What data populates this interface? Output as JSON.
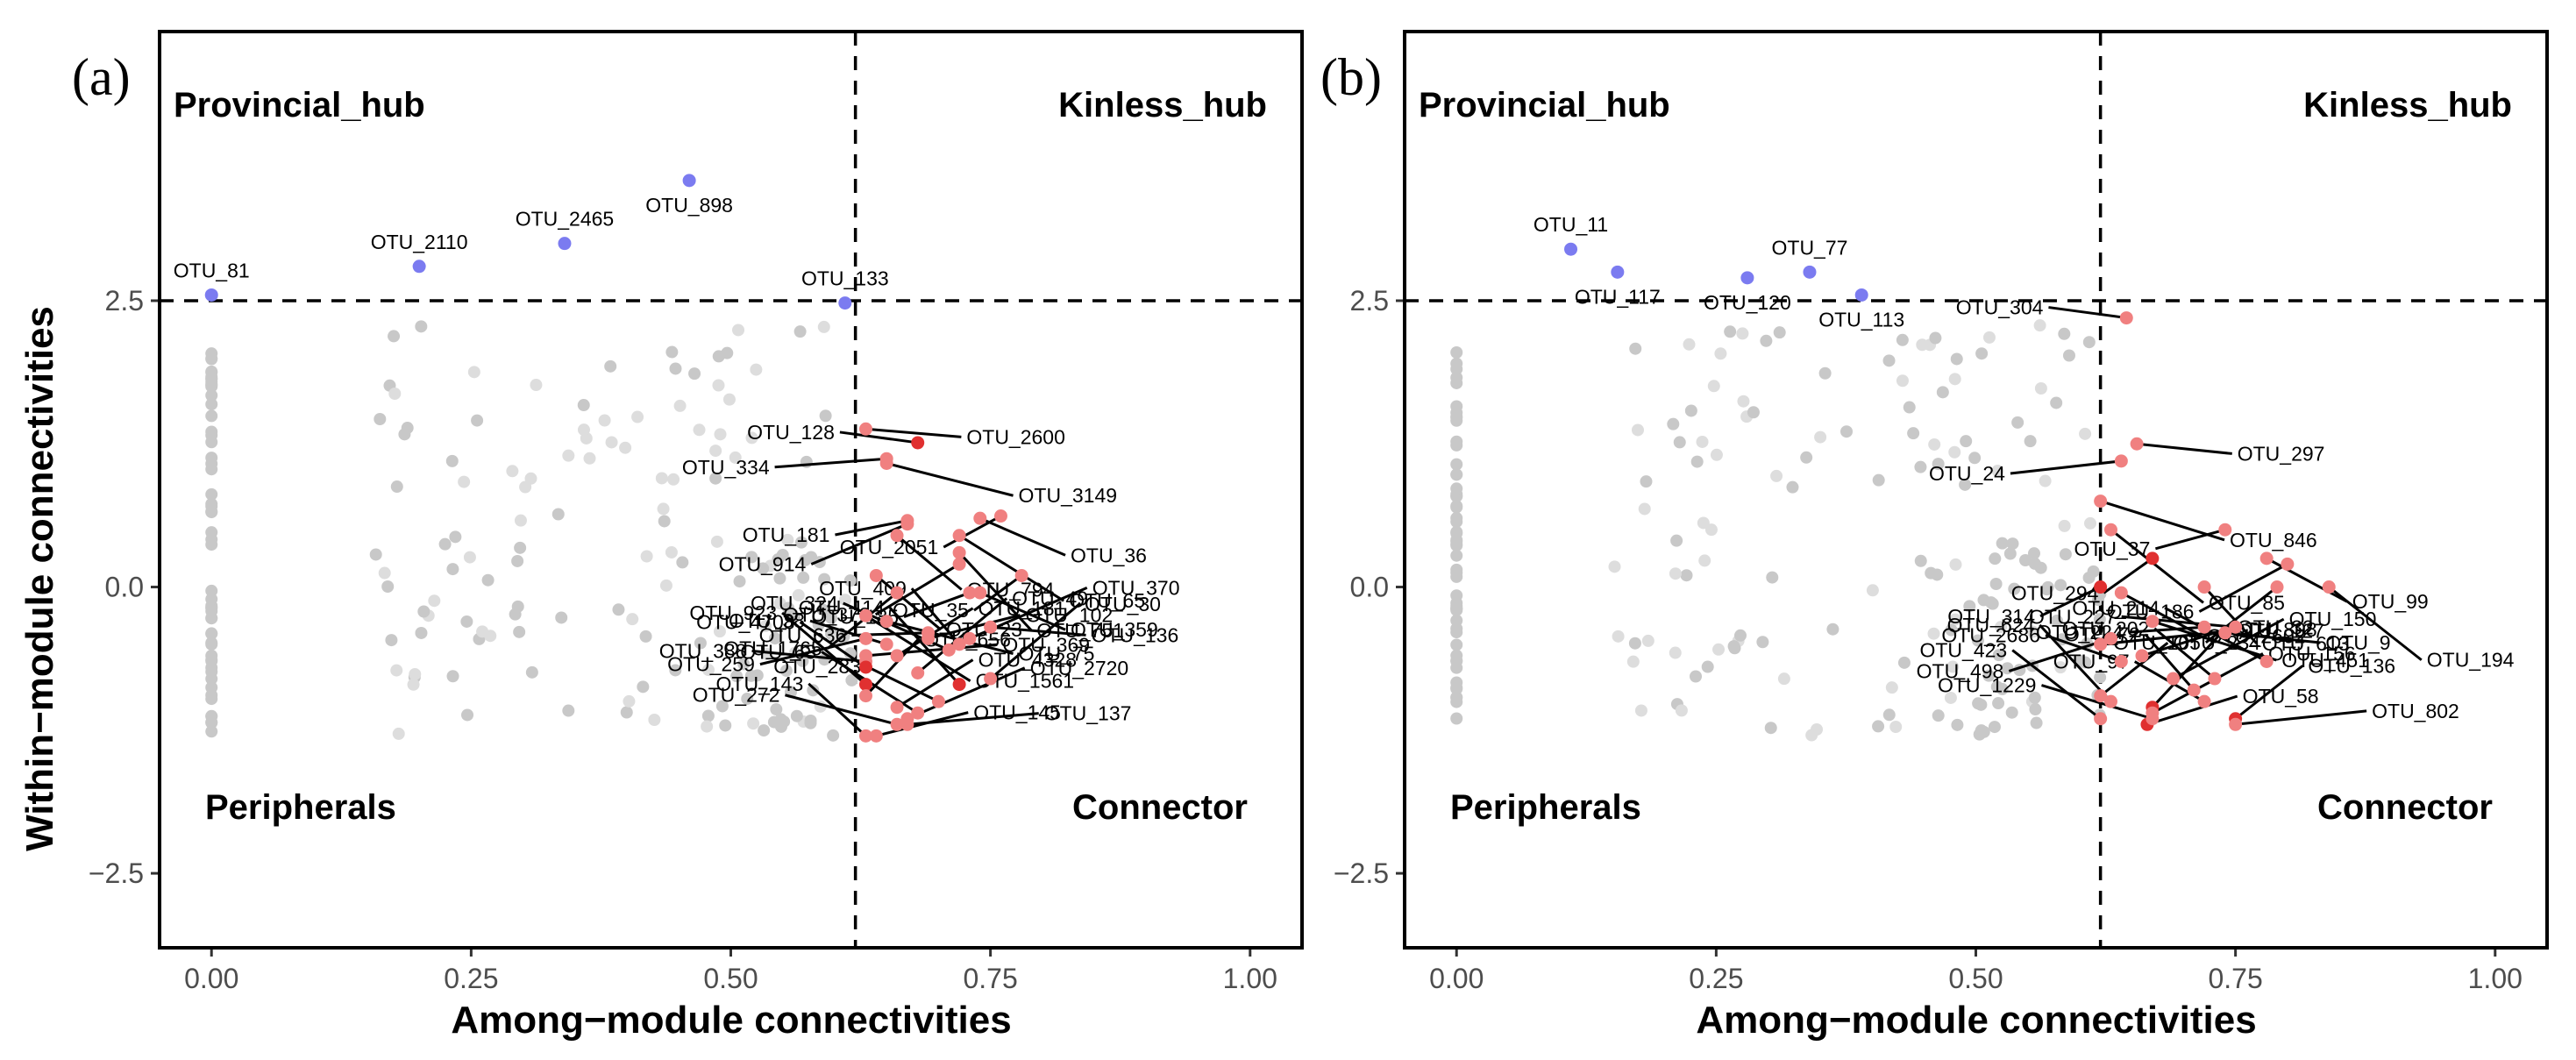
{
  "chart_data": [
    {
      "type": "scatter",
      "panel": "(a)",
      "xlabel": "Among−module connectivities",
      "ylabel": "Within−module connectivities",
      "xlim": [
        -0.05,
        1.05
      ],
      "ylim": [
        -3.15,
        4.85
      ],
      "x_ticks": [
        "0.00",
        "0.25",
        "0.50",
        "0.75",
        "1.00"
      ],
      "y_ticks": [
        "−2.5",
        "0.0",
        "2.5"
      ],
      "x_tick_values": [
        0,
        0.25,
        0.5,
        0.75,
        1.0
      ],
      "y_tick_values": [
        -2.5,
        0,
        2.5
      ],
      "threshold_x": 0.62,
      "threshold_y": 2.5,
      "quadrants": {
        "provincial": "Provincial_hub",
        "kinless": "Kinless_hub",
        "peripherals": "Peripherals",
        "connector": "Connector"
      },
      "colors": {
        "hub": "#7b7bf0",
        "connector": "#f08080",
        "connector_dark": "#e03030",
        "peripheral": "#c8c8c8",
        "peripheral_light": "#dddddd"
      },
      "hubs": [
        {
          "label": "OTU_81",
          "x": 0.0,
          "y": 2.55
        },
        {
          "label": "OTU_2110",
          "x": 0.2,
          "y": 2.8
        },
        {
          "label": "OTU_2465",
          "x": 0.34,
          "y": 3.0
        },
        {
          "label": "OTU_898",
          "x": 0.46,
          "y": 3.55
        },
        {
          "label": "OTU_133",
          "x": 0.61,
          "y": 2.48
        }
      ],
      "connectors": [
        {
          "label": "OTU_128",
          "x": 0.68,
          "y": 1.26,
          "dark": true
        },
        {
          "label": "OTU_2600",
          "x": 0.63,
          "y": 1.38,
          "dark": false
        },
        {
          "label": "OTU_334",
          "x": 0.65,
          "y": 1.12,
          "dark": false
        },
        {
          "label": "OTU_3149",
          "x": 0.65,
          "y": 1.08,
          "dark": false
        },
        {
          "label": "OTU_181",
          "x": 0.67,
          "y": 0.58,
          "dark": false
        },
        {
          "label": "OTU_36",
          "x": 0.74,
          "y": 0.6,
          "dark": false
        },
        {
          "label": "OTU_914",
          "x": 0.67,
          "y": 0.55,
          "dark": false
        },
        {
          "label": "OTU_65",
          "x": 0.72,
          "y": 0.45,
          "dark": false
        },
        {
          "label": "OTU_2051",
          "x": 0.76,
          "y": 0.62,
          "dark": false
        },
        {
          "label": "OTU_794",
          "x": 0.66,
          "y": 0.45,
          "dark": false
        },
        {
          "label": "OTU_1765",
          "x": 0.66,
          "y": -0.05,
          "dark": false
        },
        {
          "label": "OTU_751",
          "x": 0.72,
          "y": 0.3,
          "dark": false
        },
        {
          "label": "OTU_35",
          "x": 0.78,
          "y": 0.1,
          "dark": false
        },
        {
          "label": "OTU_23",
          "x": 0.64,
          "y": 0.1,
          "dark": false
        },
        {
          "label": "OTU_378",
          "x": 0.72,
          "y": 0.2,
          "dark": false
        },
        {
          "label": "OTU_1561",
          "x": 0.63,
          "y": -0.25,
          "dark": false
        },
        {
          "label": "OTU_185",
          "x": 0.73,
          "y": -0.05,
          "dark": false
        },
        {
          "label": "OTU_359",
          "x": 0.74,
          "y": -0.05,
          "dark": false
        },
        {
          "label": "OTU_259",
          "x": 0.63,
          "y": -0.45,
          "dark": false
        },
        {
          "label": "OTU_75",
          "x": 0.65,
          "y": -0.3,
          "dark": false
        },
        {
          "label": "OTU_636",
          "x": 0.69,
          "y": -0.4,
          "dark": false
        },
        {
          "label": "OTU_136",
          "x": 0.75,
          "y": -0.35,
          "dark": false
        },
        {
          "label": "OTU_388",
          "x": 0.63,
          "y": -0.65,
          "dark": false
        },
        {
          "label": "OTU_369",
          "x": 0.63,
          "y": -0.6,
          "dark": false
        },
        {
          "label": "OTU_38",
          "x": 0.65,
          "y": -0.5,
          "dark": false
        },
        {
          "label": "OTU_102",
          "x": 0.69,
          "y": -0.45,
          "dark": false
        },
        {
          "label": "OTU_324",
          "x": 0.71,
          "y": -0.55,
          "dark": false
        },
        {
          "label": "OTU_370",
          "x": 0.73,
          "y": -0.45,
          "dark": false
        },
        {
          "label": "OTU_4708",
          "x": 0.63,
          "y": -0.7,
          "dark": true
        },
        {
          "label": "OTU_181",
          "x": 0.66,
          "y": -0.6,
          "dark": false
        },
        {
          "label": "OTU_923",
          "x": 0.63,
          "y": -0.85,
          "dark": true
        },
        {
          "label": "OTU_49",
          "x": 0.68,
          "y": -0.75,
          "dark": false
        },
        {
          "label": "OTU_409",
          "x": 0.72,
          "y": -0.5,
          "dark": false
        },
        {
          "label": "OTU_656",
          "x": 0.63,
          "y": -0.95,
          "dark": false
        },
        {
          "label": "OTU_114",
          "x": 0.72,
          "y": -0.85,
          "dark": true
        },
        {
          "label": "OTU_30",
          "x": 0.75,
          "y": -0.8,
          "dark": false
        },
        {
          "label": "OTU_143",
          "x": 0.63,
          "y": -1.3,
          "dark": false
        },
        {
          "label": "OTU_4328",
          "x": 0.66,
          "y": -1.05,
          "dark": false
        },
        {
          "label": "OTU_63",
          "x": 0.68,
          "y": -1.1,
          "dark": false
        },
        {
          "label": "OTU_2720",
          "x": 0.67,
          "y": -1.15,
          "dark": false
        },
        {
          "label": "OTU_283",
          "x": 0.7,
          "y": -1.0,
          "dark": false
        },
        {
          "label": "OTU_145",
          "x": 0.64,
          "y": -1.3,
          "dark": false
        },
        {
          "label": "OTU_272",
          "x": 0.66,
          "y": -1.2,
          "dark": false
        },
        {
          "label": "OTU_137",
          "x": 0.67,
          "y": -1.2,
          "dark": false
        }
      ]
    },
    {
      "type": "scatter",
      "panel": "(b)",
      "xlabel": "Among−module connectivities",
      "ylabel": "",
      "xlim": [
        -0.05,
        1.05
      ],
      "ylim": [
        -3.15,
        4.85
      ],
      "x_ticks": [
        "0.00",
        "0.25",
        "0.50",
        "0.75",
        "1.00"
      ],
      "y_ticks": [
        "−2.5",
        "0.0",
        "2.5"
      ],
      "x_tick_values": [
        0,
        0.25,
        0.5,
        0.75,
        1.0
      ],
      "y_tick_values": [
        -2.5,
        0,
        2.5
      ],
      "threshold_x": 0.62,
      "threshold_y": 2.5,
      "quadrants": {
        "provincial": "Provincial_hub",
        "kinless": "Kinless_hub",
        "peripherals": "Peripherals",
        "connector": "Connector"
      },
      "colors": {
        "hub": "#7b7bf0",
        "connector": "#f08080",
        "connector_dark": "#e03030",
        "peripheral": "#c8c8c8",
        "peripheral_light": "#dddddd"
      },
      "hubs": [
        {
          "label": "OTU_11",
          "x": 0.11,
          "y": 2.95
        },
        {
          "label": "OTU_117",
          "x": 0.155,
          "y": 2.75
        },
        {
          "label": "OTU_120",
          "x": 0.28,
          "y": 2.7
        },
        {
          "label": "OTU_77",
          "x": 0.34,
          "y": 2.75
        },
        {
          "label": "OTU_113",
          "x": 0.39,
          "y": 2.55
        }
      ],
      "connectors": [
        {
          "label": "OTU_304",
          "x": 0.645,
          "y": 2.35,
          "dark": false
        },
        {
          "label": "OTU_297",
          "x": 0.655,
          "y": 1.25,
          "dark": false
        },
        {
          "label": "OTU_24",
          "x": 0.64,
          "y": 1.1,
          "dark": false
        },
        {
          "label": "OTU_846",
          "x": 0.62,
          "y": 0.75,
          "dark": false
        },
        {
          "label": "OTU_37",
          "x": 0.74,
          "y": 0.5,
          "dark": false
        },
        {
          "label": "OTU_99",
          "x": 0.78,
          "y": 0.25,
          "dark": false
        },
        {
          "label": "OTU_186",
          "x": 0.8,
          "y": 0.2,
          "dark": false
        },
        {
          "label": "OTU_85",
          "x": 0.63,
          "y": 0.5,
          "dark": false
        },
        {
          "label": "OTU_294",
          "x": 0.67,
          "y": 0.25,
          "dark": true
        },
        {
          "label": "OTU_613",
          "x": 0.72,
          "y": 0.0,
          "dark": false
        },
        {
          "label": "OTU_105",
          "x": 0.79,
          "y": 0.0,
          "dark": false
        },
        {
          "label": "OTU_194",
          "x": 0.84,
          "y": 0.0,
          "dark": false
        },
        {
          "label": "OTU_314",
          "x": 0.62,
          "y": 0.0,
          "dark": true
        },
        {
          "label": "OTU_2602",
          "x": 0.64,
          "y": -0.05,
          "dark": false
        },
        {
          "label": "OTU_498",
          "x": 0.63,
          "y": -0.45,
          "dark": false
        },
        {
          "label": "OTU_451",
          "x": 0.67,
          "y": -0.3,
          "dark": false
        },
        {
          "label": "OTU_224",
          "x": 0.72,
          "y": -0.35,
          "dark": false
        },
        {
          "label": "OTU_9",
          "x": 0.74,
          "y": -0.4,
          "dark": false
        },
        {
          "label": "OTU_227",
          "x": 0.75,
          "y": -0.35,
          "dark": false
        },
        {
          "label": "OTU_127",
          "x": 0.62,
          "y": -0.5,
          "dark": false
        },
        {
          "label": "OTU_2686",
          "x": 0.64,
          "y": -0.65,
          "dark": false
        },
        {
          "label": "OTU_32",
          "x": 0.66,
          "y": -0.6,
          "dark": false
        },
        {
          "label": "OTU_214",
          "x": 0.78,
          "y": -0.65,
          "dark": false
        },
        {
          "label": "OTU_150",
          "x": 0.69,
          "y": -0.8,
          "dark": false
        },
        {
          "label": "OTU_202",
          "x": 0.73,
          "y": -0.8,
          "dark": false
        },
        {
          "label": "OTU_234",
          "x": 0.62,
          "y": -0.95,
          "dark": false
        },
        {
          "label": "OTU_624",
          "x": 0.63,
          "y": -1.0,
          "dark": false
        },
        {
          "label": "OTU_898",
          "x": 0.67,
          "y": -1.05,
          "dark": true
        },
        {
          "label": "OTU_72",
          "x": 0.71,
          "y": -0.9,
          "dark": false
        },
        {
          "label": "OTU_136",
          "x": 0.75,
          "y": -1.15,
          "dark": true
        },
        {
          "label": "OTU_423",
          "x": 0.62,
          "y": -1.15,
          "dark": false
        },
        {
          "label": "OTU_156",
          "x": 0.67,
          "y": -1.1,
          "dark": false
        },
        {
          "label": "OTU_97",
          "x": 0.72,
          "y": -1.0,
          "dark": false
        },
        {
          "label": "OTU_58",
          "x": 0.665,
          "y": -1.2,
          "dark": true
        },
        {
          "label": "OTU_1229",
          "x": 0.67,
          "y": -1.15,
          "dark": false
        },
        {
          "label": "OTU_802",
          "x": 0.75,
          "y": -1.2,
          "dark": false
        }
      ]
    }
  ]
}
